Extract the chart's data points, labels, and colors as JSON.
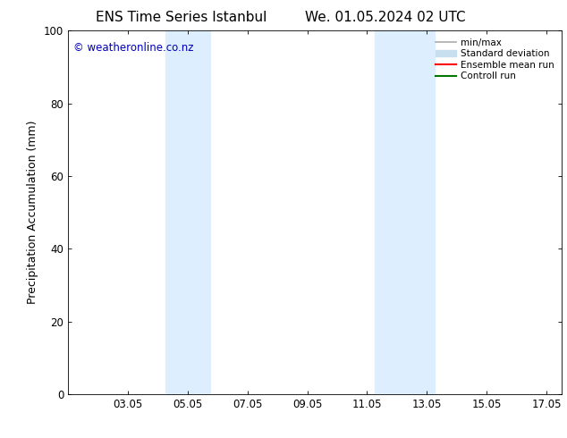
{
  "title_left": "ENS Time Series Istanbul",
  "title_right": "We. 01.05.2024 02 UTC",
  "ylabel": "Precipitation Accumulation (mm)",
  "ylim": [
    0,
    100
  ],
  "yticks": [
    0,
    20,
    40,
    60,
    80,
    100
  ],
  "x_min": 1.0,
  "x_max": 17.5,
  "xtick_labels": [
    "03.05",
    "05.05",
    "07.05",
    "09.05",
    "11.05",
    "13.05",
    "15.05",
    "17.05"
  ],
  "xtick_positions": [
    3,
    5,
    7,
    9,
    11,
    13,
    15,
    17
  ],
  "shaded_bands": [
    {
      "x_start": 4.25,
      "x_end": 5.75
    },
    {
      "x_start": 11.25,
      "x_end": 13.25
    }
  ],
  "shaded_color": "#ddeeff",
  "watermark_text": "© weatheronline.co.nz",
  "watermark_color": "#0000bb",
  "watermark_fontsize": 8.5,
  "legend_items": [
    {
      "label": "min/max",
      "color": "#aaaaaa",
      "lw": 1.2,
      "type": "line"
    },
    {
      "label": "Standard deviation",
      "color": "#c8dff0",
      "lw": 5,
      "type": "fill"
    },
    {
      "label": "Ensemble mean run",
      "color": "#ff0000",
      "lw": 1.5,
      "type": "line"
    },
    {
      "label": "Controll run",
      "color": "#007700",
      "lw": 1.5,
      "type": "line"
    }
  ],
  "background_color": "#ffffff",
  "title_fontsize": 11,
  "axis_label_fontsize": 9,
  "tick_fontsize": 8.5,
  "legend_fontsize": 7.5
}
